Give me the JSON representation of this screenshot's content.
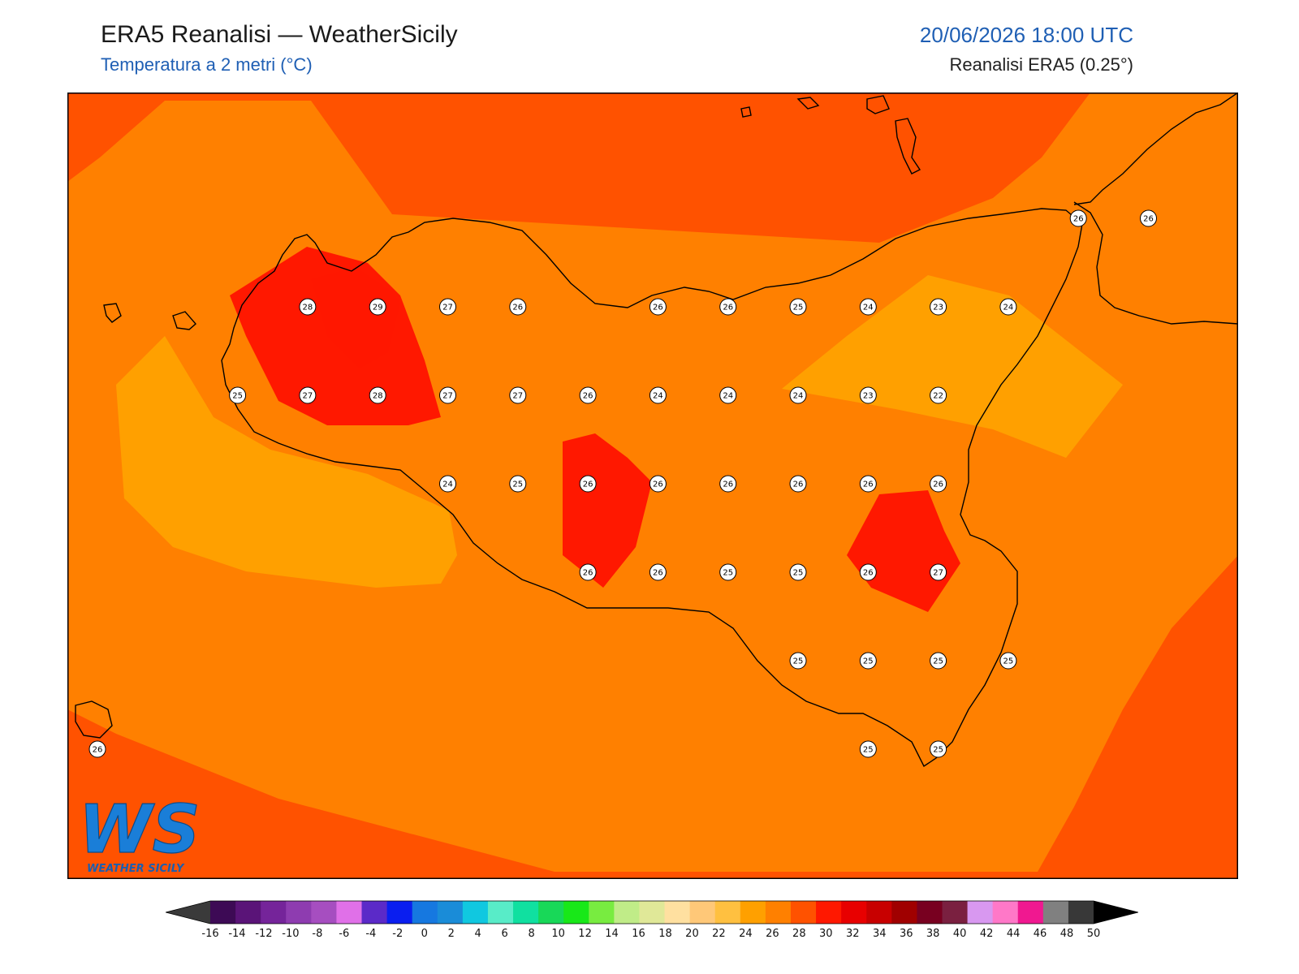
{
  "header": {
    "title": "ERA5 Reanalisi — WeatherSicily",
    "subtitle": "Temperatura a 2 metri (°C)",
    "datetime": "20/06/2026 18:00 UTC",
    "source": "Reanalisi ERA5 (0.25°)"
  },
  "logo": {
    "letters": "WS",
    "text": "WEATHER SICILY"
  },
  "colors": {
    "t22": "#ffa000",
    "t24": "#ff8000",
    "t26": "#ff5200",
    "t28": "#ff1800",
    "coast": "#000000"
  },
  "stations": [
    {
      "v": "26",
      "c": 14,
      "r": 1
    },
    {
      "v": "26",
      "c": 15,
      "r": 1
    },
    {
      "v": "28",
      "c": 3,
      "r": 2
    },
    {
      "v": "29",
      "c": 4,
      "r": 2
    },
    {
      "v": "27",
      "c": 5,
      "r": 2
    },
    {
      "v": "26",
      "c": 6,
      "r": 2
    },
    {
      "v": "26",
      "c": 8,
      "r": 2
    },
    {
      "v": "26",
      "c": 9,
      "r": 2
    },
    {
      "v": "25",
      "c": 10,
      "r": 2
    },
    {
      "v": "24",
      "c": 11,
      "r": 2
    },
    {
      "v": "23",
      "c": 12,
      "r": 2
    },
    {
      "v": "24",
      "c": 13,
      "r": 2
    },
    {
      "v": "25",
      "c": 2,
      "r": 3
    },
    {
      "v": "27",
      "c": 3,
      "r": 3
    },
    {
      "v": "28",
      "c": 4,
      "r": 3
    },
    {
      "v": "27",
      "c": 5,
      "r": 3
    },
    {
      "v": "27",
      "c": 6,
      "r": 3
    },
    {
      "v": "26",
      "c": 7,
      "r": 3
    },
    {
      "v": "24",
      "c": 8,
      "r": 3
    },
    {
      "v": "24",
      "c": 9,
      "r": 3
    },
    {
      "v": "24",
      "c": 10,
      "r": 3
    },
    {
      "v": "23",
      "c": 11,
      "r": 3
    },
    {
      "v": "22",
      "c": 12,
      "r": 3
    },
    {
      "v": "24",
      "c": 5,
      "r": 4
    },
    {
      "v": "25",
      "c": 6,
      "r": 4
    },
    {
      "v": "26",
      "c": 7,
      "r": 4
    },
    {
      "v": "26",
      "c": 8,
      "r": 4
    },
    {
      "v": "26",
      "c": 9,
      "r": 4
    },
    {
      "v": "26",
      "c": 10,
      "r": 4
    },
    {
      "v": "26",
      "c": 11,
      "r": 4
    },
    {
      "v": "26",
      "c": 12,
      "r": 4
    },
    {
      "v": "26",
      "c": 7,
      "r": 5
    },
    {
      "v": "26",
      "c": 8,
      "r": 5
    },
    {
      "v": "25",
      "c": 9,
      "r": 5
    },
    {
      "v": "25",
      "c": 10,
      "r": 5
    },
    {
      "v": "26",
      "c": 11,
      "r": 5
    },
    {
      "v": "27",
      "c": 12,
      "r": 5
    },
    {
      "v": "25",
      "c": 10,
      "r": 6
    },
    {
      "v": "25",
      "c": 11,
      "r": 6
    },
    {
      "v": "25",
      "c": 12,
      "r": 6
    },
    {
      "v": "25",
      "c": 13,
      "r": 6
    },
    {
      "v": "26",
      "c": 0,
      "r": 7
    },
    {
      "v": "25",
      "c": 11,
      "r": 7
    },
    {
      "v": "25",
      "c": 12,
      "r": 7
    }
  ],
  "colorbar": {
    "ticks": [
      "-16",
      "-14",
      "-12",
      "-10",
      "-8",
      "-6",
      "-4",
      "-2",
      "0",
      "2",
      "4",
      "6",
      "8",
      "10",
      "12",
      "14",
      "16",
      "18",
      "20",
      "22",
      "24",
      "26",
      "28",
      "30",
      "32",
      "34",
      "36",
      "38",
      "40",
      "42",
      "44",
      "46",
      "48",
      "50"
    ],
    "colors": [
      "#3d0a55",
      "#5a1478",
      "#75249a",
      "#8e3cb0",
      "#a64ec0",
      "#e070e8",
      "#5b2ac8",
      "#0a1ef0",
      "#1678e0",
      "#1a8cd8",
      "#10c8e0",
      "#58ecc8",
      "#10e0a0",
      "#18d858",
      "#18e818",
      "#78ec40",
      "#c0ec88",
      "#e0e898",
      "#ffe0a0",
      "#ffc878",
      "#ffc040",
      "#ffa000",
      "#ff8000",
      "#ff5200",
      "#ff1800",
      "#e80000",
      "#c80000",
      "#a00000",
      "#780020",
      "#7a2040",
      "#d898f0",
      "#ff78c8",
      "#f01890",
      "#808080",
      "#383838"
    ],
    "under_color": "#3a3a3a",
    "over_color": "#000000"
  }
}
